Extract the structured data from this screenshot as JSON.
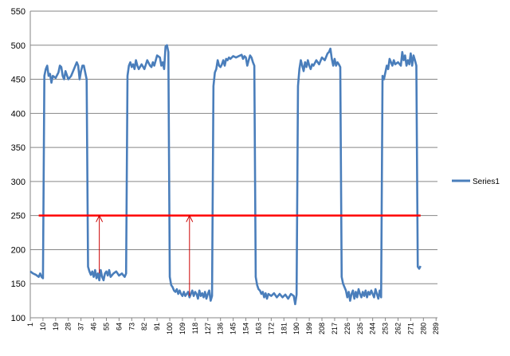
{
  "chart_data": {
    "type": "line",
    "xlabel": "",
    "ylabel": "",
    "ylim": [
      100,
      550
    ],
    "yticks": [
      100,
      150,
      200,
      250,
      300,
      350,
      400,
      450,
      500,
      550
    ],
    "xlim": [
      1,
      290
    ],
    "xtick_labels": [
      1,
      10,
      19,
      28,
      37,
      46,
      55,
      64,
      73,
      82,
      91,
      100,
      109,
      118,
      127,
      136,
      145,
      154,
      163,
      172,
      181,
      190,
      199,
      208,
      217,
      226,
      235,
      244,
      253,
      262,
      271,
      280,
      289
    ],
    "grid": "horizontal",
    "legend": "right",
    "series": [
      {
        "name": "Series1",
        "color": "#4a7ebb",
        "points": [
          [
            1,
            168
          ],
          [
            3,
            165
          ],
          [
            5,
            163
          ],
          [
            7,
            160
          ],
          [
            8,
            165
          ],
          [
            9,
            160
          ],
          [
            10,
            158
          ],
          [
            11,
            455
          ],
          [
            12,
            465
          ],
          [
            13,
            470
          ],
          [
            14,
            455
          ],
          [
            15,
            458
          ],
          [
            16,
            445
          ],
          [
            17,
            455
          ],
          [
            19,
            452
          ],
          [
            21,
            460
          ],
          [
            22,
            470
          ],
          [
            23,
            468
          ],
          [
            24,
            455
          ],
          [
            25,
            450
          ],
          [
            26,
            462
          ],
          [
            28,
            450
          ],
          [
            30,
            455
          ],
          [
            32,
            465
          ],
          [
            34,
            475
          ],
          [
            35,
            470
          ],
          [
            36,
            450
          ],
          [
            37,
            462
          ],
          [
            38,
            470
          ],
          [
            39,
            470
          ],
          [
            40,
            460
          ],
          [
            41,
            450
          ],
          [
            42,
            175
          ],
          [
            43,
            168
          ],
          [
            44,
            163
          ],
          [
            45,
            168
          ],
          [
            46,
            160
          ],
          [
            47,
            170
          ],
          [
            48,
            158
          ],
          [
            49,
            165
          ],
          [
            50,
            155
          ],
          [
            51,
            170
          ],
          [
            52,
            160
          ],
          [
            53,
            155
          ],
          [
            54,
            165
          ],
          [
            55,
            168
          ],
          [
            56,
            162
          ],
          [
            57,
            170
          ],
          [
            58,
            160
          ],
          [
            60,
            165
          ],
          [
            62,
            168
          ],
          [
            64,
            162
          ],
          [
            66,
            165
          ],
          [
            68,
            160
          ],
          [
            69,
            165
          ],
          [
            70,
            455
          ],
          [
            71,
            470
          ],
          [
            72,
            475
          ],
          [
            73,
            468
          ],
          [
            74,
            472
          ],
          [
            75,
            465
          ],
          [
            76,
            478
          ],
          [
            77,
            470
          ],
          [
            78,
            465
          ],
          [
            80,
            472
          ],
          [
            82,
            465
          ],
          [
            84,
            478
          ],
          [
            86,
            470
          ],
          [
            87,
            468
          ],
          [
            88,
            475
          ],
          [
            89,
            470
          ],
          [
            91,
            485
          ],
          [
            93,
            482
          ],
          [
            94,
            470
          ],
          [
            95,
            475
          ],
          [
            96,
            465
          ],
          [
            97,
            498
          ],
          [
            98,
            500
          ],
          [
            99,
            490
          ],
          [
            100,
            160
          ],
          [
            101,
            148
          ],
          [
            102,
            145
          ],
          [
            103,
            140
          ],
          [
            104,
            138
          ],
          [
            105,
            142
          ],
          [
            106,
            135
          ],
          [
            107,
            140
          ],
          [
            108,
            135
          ],
          [
            109,
            132
          ],
          [
            110,
            138
          ],
          [
            111,
            132
          ],
          [
            112,
            135
          ],
          [
            113,
            138
          ],
          [
            114,
            130
          ],
          [
            115,
            135
          ],
          [
            116,
            140
          ],
          [
            117,
            132
          ],
          [
            118,
            138
          ],
          [
            119,
            135
          ],
          [
            120,
            128
          ],
          [
            121,
            140
          ],
          [
            122,
            132
          ],
          [
            123,
            136
          ],
          [
            124,
            130
          ],
          [
            125,
            138
          ],
          [
            126,
            128
          ],
          [
            127,
            135
          ],
          [
            128,
            140
          ],
          [
            129,
            125
          ],
          [
            130,
            132
          ],
          [
            131,
            440
          ],
          [
            132,
            460
          ],
          [
            133,
            465
          ],
          [
            134,
            478
          ],
          [
            135,
            470
          ],
          [
            136,
            468
          ],
          [
            137,
            472
          ],
          [
            138,
            478
          ],
          [
            139,
            470
          ],
          [
            140,
            480
          ],
          [
            141,
            478
          ],
          [
            142,
            482
          ],
          [
            143,
            480
          ],
          [
            145,
            484
          ],
          [
            147,
            482
          ],
          [
            149,
            484
          ],
          [
            151,
            486
          ],
          [
            152,
            480
          ],
          [
            153,
            484
          ],
          [
            154,
            482
          ],
          [
            155,
            470
          ],
          [
            156,
            478
          ],
          [
            157,
            485
          ],
          [
            158,
            482
          ],
          [
            159,
            475
          ],
          [
            160,
            470
          ],
          [
            161,
            160
          ],
          [
            162,
            148
          ],
          [
            163,
            142
          ],
          [
            164,
            140
          ],
          [
            165,
            135
          ],
          [
            166,
            138
          ],
          [
            167,
            130
          ],
          [
            168,
            136
          ],
          [
            169,
            128
          ],
          [
            170,
            135
          ],
          [
            172,
            132
          ],
          [
            174,
            136
          ],
          [
            176,
            130
          ],
          [
            178,
            135
          ],
          [
            180,
            130
          ],
          [
            182,
            134
          ],
          [
            184,
            128
          ],
          [
            186,
            135
          ],
          [
            188,
            132
          ],
          [
            189,
            120
          ],
          [
            190,
            134
          ],
          [
            191,
            440
          ],
          [
            192,
            465
          ],
          [
            193,
            478
          ],
          [
            194,
            470
          ],
          [
            195,
            462
          ],
          [
            196,
            475
          ],
          [
            197,
            468
          ],
          [
            198,
            478
          ],
          [
            199,
            470
          ],
          [
            200,
            465
          ],
          [
            201,
            472
          ],
          [
            202,
            470
          ],
          [
            204,
            478
          ],
          [
            206,
            472
          ],
          [
            208,
            482
          ],
          [
            210,
            478
          ],
          [
            212,
            488
          ],
          [
            213,
            490
          ],
          [
            214,
            495
          ],
          [
            215,
            480
          ],
          [
            216,
            470
          ],
          [
            217,
            480
          ],
          [
            218,
            470
          ],
          [
            219,
            475
          ],
          [
            220,
            472
          ],
          [
            221,
            468
          ],
          [
            222,
            160
          ],
          [
            223,
            150
          ],
          [
            224,
            145
          ],
          [
            225,
            140
          ],
          [
            226,
            130
          ],
          [
            227,
            138
          ],
          [
            228,
            125
          ],
          [
            229,
            135
          ],
          [
            230,
            140
          ],
          [
            231,
            128
          ],
          [
            232,
            138
          ],
          [
            233,
            130
          ],
          [
            234,
            142
          ],
          [
            235,
            135
          ],
          [
            236,
            130
          ],
          [
            237,
            138
          ],
          [
            238,
            132
          ],
          [
            239,
            140
          ],
          [
            240,
            130
          ],
          [
            241,
            138
          ],
          [
            242,
            134
          ],
          [
            243,
            140
          ],
          [
            244,
            135
          ],
          [
            245,
            130
          ],
          [
            246,
            142
          ],
          [
            247,
            135
          ],
          [
            248,
            128
          ],
          [
            249,
            140
          ],
          [
            250,
            130
          ],
          [
            251,
            455
          ],
          [
            252,
            450
          ],
          [
            253,
            460
          ],
          [
            254,
            470
          ],
          [
            255,
            465
          ],
          [
            256,
            480
          ],
          [
            257,
            475
          ],
          [
            258,
            470
          ],
          [
            259,
            478
          ],
          [
            260,
            472
          ],
          [
            262,
            475
          ],
          [
            264,
            470
          ],
          [
            265,
            490
          ],
          [
            266,
            478
          ],
          [
            267,
            485
          ],
          [
            268,
            470
          ],
          [
            269,
            478
          ],
          [
            270,
            472
          ],
          [
            271,
            488
          ],
          [
            272,
            470
          ],
          [
            273,
            485
          ],
          [
            274,
            478
          ],
          [
            275,
            470
          ],
          [
            276,
            175
          ],
          [
            277,
            172
          ],
          [
            278,
            176
          ]
        ]
      }
    ],
    "annotations": {
      "threshold_line": {
        "y": 250,
        "x_start": 7,
        "x_end": 278,
        "color": "#ff0000"
      },
      "arrows": [
        {
          "x": 50,
          "y_from": 165,
          "y_to": 250,
          "color": "#cc0000"
        },
        {
          "x": 114,
          "y_from": 132,
          "y_to": 250,
          "color": "#cc0000"
        }
      ]
    }
  }
}
